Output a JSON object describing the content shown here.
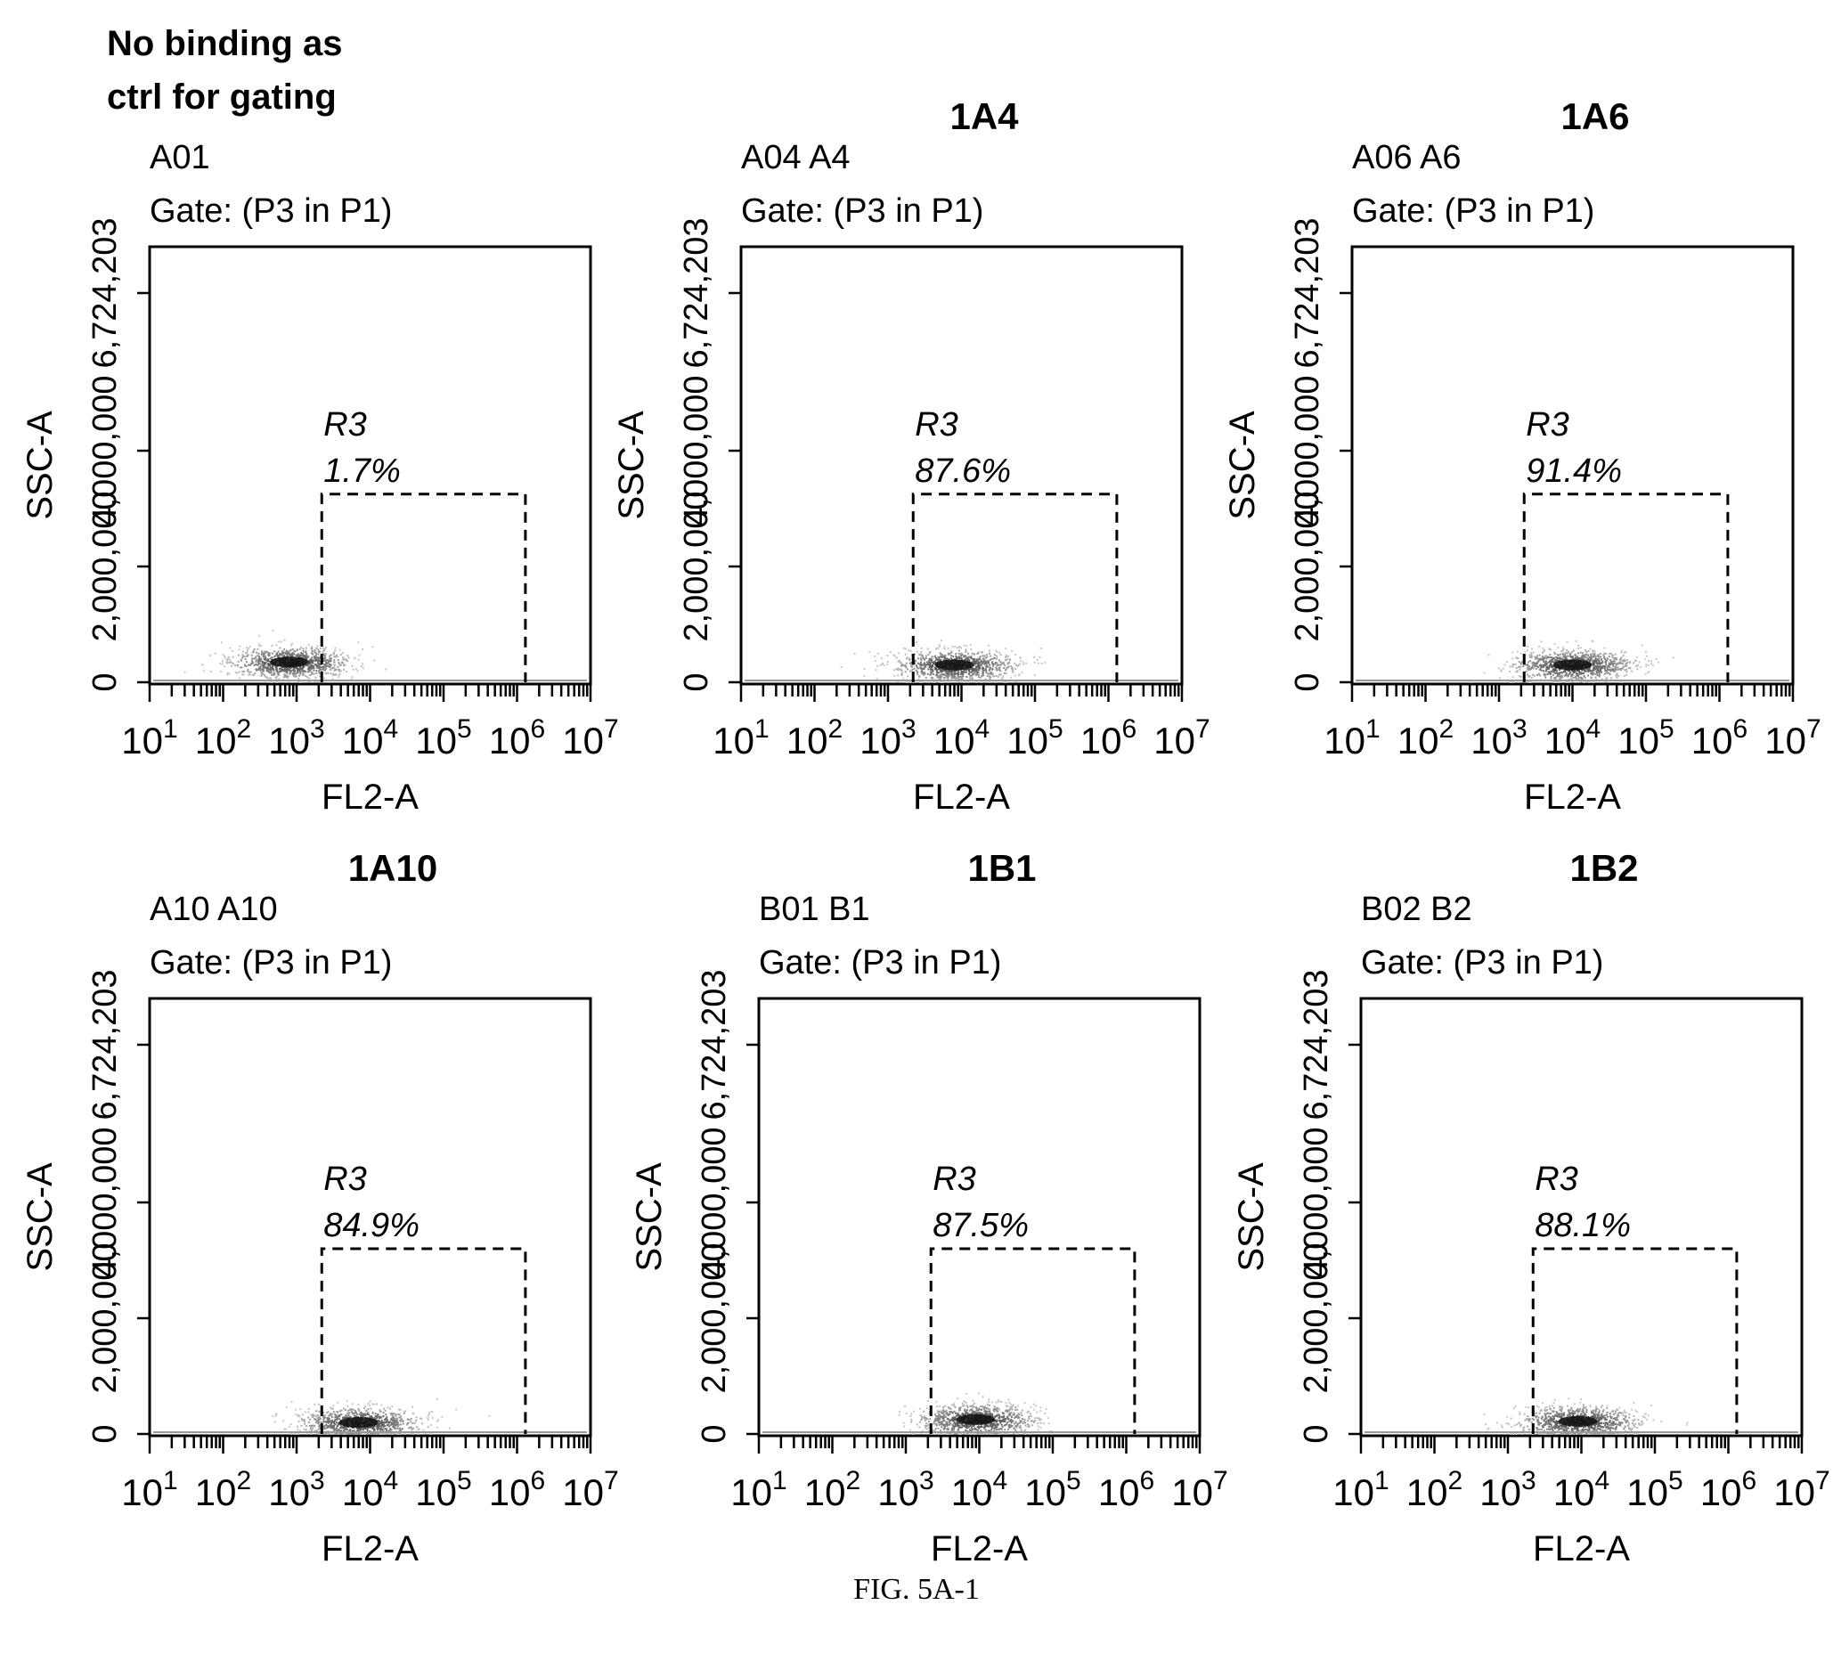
{
  "figure_caption": "FIG. 5A-1",
  "control_note": [
    "No binding as",
    "ctrl for gating"
  ],
  "chart_data": [
    {
      "type": "scatter",
      "title": "",
      "sample": "A01",
      "gate": "Gate: (P3 in P1)",
      "xlabel": "FL2-A",
      "ylabel": "SSC-A",
      "x_scale": "log",
      "xlim": [
        10,
        10000000
      ],
      "x_ticks": [
        10,
        100,
        1000,
        10000,
        100000,
        1000000,
        10000000
      ],
      "x_tick_labels": [
        [
          "10",
          "1"
        ],
        [
          "10",
          "2"
        ],
        [
          "10",
          "3"
        ],
        [
          "10",
          "4"
        ],
        [
          "10",
          "5"
        ],
        [
          "10",
          "6"
        ],
        [
          "10",
          "7"
        ]
      ],
      "ylim": [
        0,
        6724203
      ],
      "y_ticks": [
        0,
        2000000,
        4000000,
        6724203
      ],
      "y_tick_labels": [
        "0",
        "2,000,000",
        "4,000,000",
        "6,724,203"
      ],
      "region": {
        "name": "R3",
        "percent": "1.7%",
        "x_range": [
          2200,
          1300000
        ],
        "y_range": [
          0,
          3250000
        ]
      },
      "population_center": {
        "x": 800,
        "y": 350000
      }
    },
    {
      "type": "scatter",
      "title": "1A4",
      "sample": "A04 A4",
      "gate": "Gate: (P3 in P1)",
      "xlabel": "FL2-A",
      "ylabel": "SSC-A",
      "x_scale": "log",
      "xlim": [
        10,
        10000000
      ],
      "x_ticks": [
        10,
        100,
        1000,
        10000,
        100000,
        1000000,
        10000000
      ],
      "x_tick_labels": [
        [
          "10",
          "1"
        ],
        [
          "10",
          "2"
        ],
        [
          "10",
          "3"
        ],
        [
          "10",
          "4"
        ],
        [
          "10",
          "5"
        ],
        [
          "10",
          "6"
        ],
        [
          "10",
          "7"
        ]
      ],
      "ylim": [
        0,
        6724203
      ],
      "y_ticks": [
        0,
        2000000,
        4000000,
        6724203
      ],
      "y_tick_labels": [
        "0",
        "2,000,000",
        "4,000,000",
        "6,724,203"
      ],
      "region": {
        "name": "R3",
        "percent": "87.6%",
        "x_range": [
          2200,
          1300000
        ],
        "y_range": [
          0,
          3250000
        ]
      },
      "population_center": {
        "x": 8000,
        "y": 300000
      }
    },
    {
      "type": "scatter",
      "title": "1A6",
      "sample": "A06 A6",
      "gate": "Gate: (P3 in P1)",
      "xlabel": "FL2-A",
      "ylabel": "SSC-A",
      "x_scale": "log",
      "xlim": [
        10,
        10000000
      ],
      "x_ticks": [
        10,
        100,
        1000,
        10000,
        100000,
        1000000,
        10000000
      ],
      "x_tick_labels": [
        [
          "10",
          "1"
        ],
        [
          "10",
          "2"
        ],
        [
          "10",
          "3"
        ],
        [
          "10",
          "4"
        ],
        [
          "10",
          "5"
        ],
        [
          "10",
          "6"
        ],
        [
          "10",
          "7"
        ]
      ],
      "ylim": [
        0,
        6724203
      ],
      "y_ticks": [
        0,
        2000000,
        4000000,
        6724203
      ],
      "y_tick_labels": [
        "0",
        "2,000,000",
        "4,000,000",
        "6,724,203"
      ],
      "region": {
        "name": "R3",
        "percent": "91.4%",
        "x_range": [
          2200,
          1300000
        ],
        "y_range": [
          0,
          3250000
        ]
      },
      "population_center": {
        "x": 10000,
        "y": 300000
      }
    },
    {
      "type": "scatter",
      "title": "1A10",
      "sample": "A10 A10",
      "gate": "Gate: (P3 in P1)",
      "xlabel": "FL2-A",
      "ylabel": "SSC-A",
      "x_scale": "log",
      "xlim": [
        10,
        10000000
      ],
      "x_ticks": [
        10,
        100,
        1000,
        10000,
        100000,
        1000000,
        10000000
      ],
      "x_tick_labels": [
        [
          "10",
          "1"
        ],
        [
          "10",
          "2"
        ],
        [
          "10",
          "3"
        ],
        [
          "10",
          "4"
        ],
        [
          "10",
          "5"
        ],
        [
          "10",
          "6"
        ],
        [
          "10",
          "7"
        ]
      ],
      "ylim": [
        0,
        6724203
      ],
      "y_ticks": [
        0,
        2000000,
        4000000,
        6724203
      ],
      "y_tick_labels": [
        "0",
        "2,000,000",
        "4,000,000",
        "6,724,203"
      ],
      "region": {
        "name": "R3",
        "percent": "84.9%",
        "x_range": [
          2200,
          1300000
        ],
        "y_range": [
          0,
          3200000
        ]
      },
      "population_center": {
        "x": 7000,
        "y": 200000
      }
    },
    {
      "type": "scatter",
      "title": "1B1",
      "sample": "B01 B1",
      "gate": "Gate: (P3 in P1)",
      "xlabel": "FL2-A",
      "ylabel": "SSC-A",
      "x_scale": "log",
      "xlim": [
        10,
        10000000
      ],
      "x_ticks": [
        10,
        100,
        1000,
        10000,
        100000,
        1000000,
        10000000
      ],
      "x_tick_labels": [
        [
          "10",
          "1"
        ],
        [
          "10",
          "2"
        ],
        [
          "10",
          "3"
        ],
        [
          "10",
          "4"
        ],
        [
          "10",
          "5"
        ],
        [
          "10",
          "6"
        ],
        [
          "10",
          "7"
        ]
      ],
      "ylim": [
        0,
        6724203
      ],
      "y_ticks": [
        0,
        2000000,
        4000000,
        6724203
      ],
      "y_tick_labels": [
        "0",
        "2,000,000",
        "4,000,000",
        "6,724,203"
      ],
      "region": {
        "name": "R3",
        "percent": "87.5%",
        "x_range": [
          2200,
          1300000
        ],
        "y_range": [
          0,
          3200000
        ]
      },
      "population_center": {
        "x": 9000,
        "y": 250000
      }
    },
    {
      "type": "scatter",
      "title": "1B2",
      "sample": "B02 B2",
      "gate": "Gate: (P3 in P1)",
      "xlabel": "FL2-A",
      "ylabel": "SSC-A",
      "x_scale": "log",
      "xlim": [
        10,
        10000000
      ],
      "x_ticks": [
        10,
        100,
        1000,
        10000,
        100000,
        1000000,
        10000000
      ],
      "x_tick_labels": [
        [
          "10",
          "1"
        ],
        [
          "10",
          "2"
        ],
        [
          "10",
          "3"
        ],
        [
          "10",
          "4"
        ],
        [
          "10",
          "5"
        ],
        [
          "10",
          "6"
        ],
        [
          "10",
          "7"
        ]
      ],
      "ylim": [
        0,
        6724203
      ],
      "y_ticks": [
        0,
        2000000,
        4000000,
        6724203
      ],
      "y_tick_labels": [
        "0",
        "2,000,000",
        "4,000,000",
        "6,724,203"
      ],
      "region": {
        "name": "R3",
        "percent": "88.1%",
        "x_range": [
          2200,
          1300000
        ],
        "y_range": [
          0,
          3200000
        ]
      },
      "population_center": {
        "x": 9000,
        "y": 220000
      }
    }
  ]
}
